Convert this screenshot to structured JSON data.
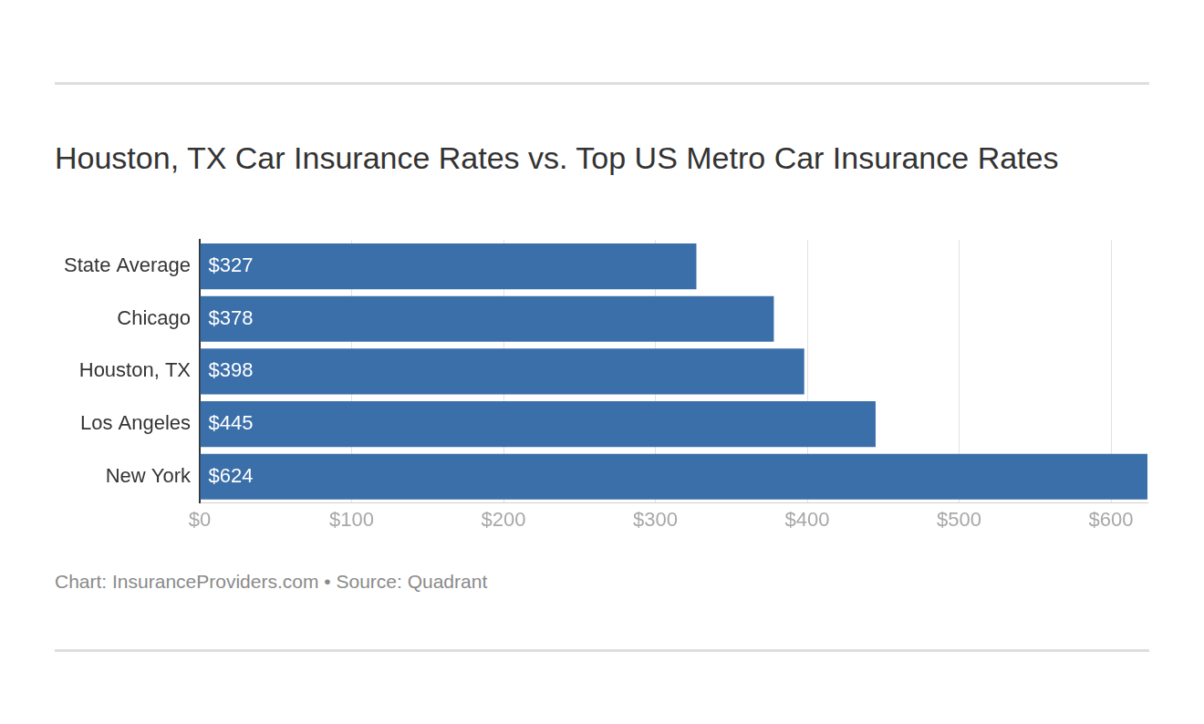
{
  "chart_data": {
    "type": "bar",
    "orientation": "horizontal",
    "title": "Houston, TX Car Insurance Rates vs. Top US Metro Car Insurance Rates",
    "source": "Chart: InsuranceProviders.com • Source: Quadrant",
    "categories": [
      "State Average",
      "Chicago",
      "Houston, TX",
      "Los Angeles",
      "New York"
    ],
    "values": [
      327,
      378,
      398,
      445,
      624
    ],
    "value_labels": [
      "$327",
      "$378",
      "$398",
      "$445",
      "$624"
    ],
    "data_labels": true,
    "color": "#3b6fa9",
    "xlim": [
      0,
      624
    ],
    "xticks": [
      {
        "value": 0,
        "label": "$0"
      },
      {
        "value": 100,
        "label": "$100"
      },
      {
        "value": 200,
        "label": "$200"
      },
      {
        "value": 300,
        "label": "$300"
      },
      {
        "value": 400,
        "label": "$400"
      },
      {
        "value": 500,
        "label": "$500"
      },
      {
        "value": 600,
        "label": "$600"
      }
    ],
    "grid": true
  }
}
